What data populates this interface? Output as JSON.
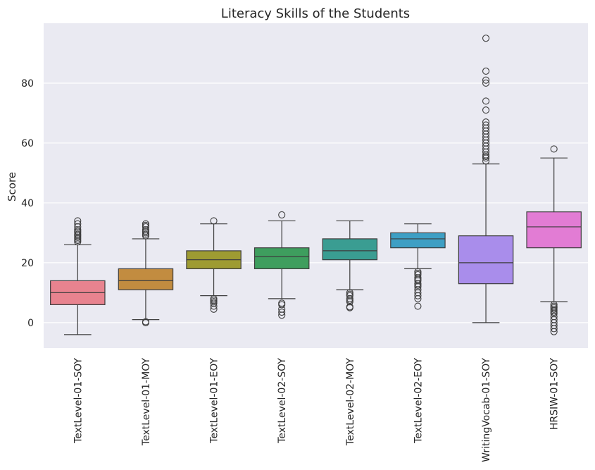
{
  "chart_data": {
    "type": "box",
    "title": "Literacy Skills of the Students",
    "xlabel": "",
    "ylabel": "Score",
    "ylim": [
      -8.5,
      100
    ],
    "yticks": [
      0,
      20,
      40,
      60,
      80
    ],
    "grid": true,
    "background": "#EAEAF2",
    "categories": [
      "TextLevel-01-SOY",
      "TextLevel-01-MOY",
      "TextLevel-01-EOY",
      "TextLevel-02-SOY",
      "TextLevel-02-MOY",
      "TextLevel-02-EOY",
      "WritingVocab-01-SOY",
      "HRSIW-01-SOY"
    ],
    "colors": [
      "#E8838F",
      "#C28C40",
      "#9E9B32",
      "#3E9E5E",
      "#3A9D92",
      "#3E9FC4",
      "#A98DEB",
      "#E27CD4"
    ],
    "boxes": [
      {
        "whisker_low": -4,
        "q1": 6,
        "median": 10,
        "q3": 14,
        "whisker_high": 26,
        "outliers": [
          27,
          27.5,
          28,
          28.5,
          29,
          29.5,
          30,
          30.5,
          31,
          32,
          33,
          34
        ]
      },
      {
        "whisker_low": 1,
        "q1": 11,
        "median": 14,
        "q3": 18,
        "whisker_high": 28,
        "outliers": [
          0,
          0.3,
          29,
          29.5,
          30,
          30.5,
          31,
          32,
          32.5,
          33
        ]
      },
      {
        "whisker_low": 9,
        "q1": 18,
        "median": 21,
        "q3": 24,
        "whisker_high": 33,
        "outliers": [
          4.5,
          5.5,
          6.5,
          7,
          7.5,
          8,
          34
        ]
      },
      {
        "whisker_low": 8,
        "q1": 18,
        "median": 22,
        "q3": 25,
        "whisker_high": 34,
        "outliers": [
          2.5,
          3.5,
          4.5,
          6,
          6.5,
          36
        ]
      },
      {
        "whisker_low": 11,
        "q1": 21,
        "median": 24,
        "q3": 28,
        "whisker_high": 34,
        "outliers": [
          5,
          5.3,
          7,
          7.5,
          8,
          9,
          9.5,
          10
        ]
      },
      {
        "whisker_low": 18,
        "q1": 25,
        "median": 28,
        "q3": 30,
        "whisker_high": 33,
        "outliers": [
          5.5,
          8,
          9,
          10,
          11,
          12,
          12.5,
          13,
          14,
          14.5,
          15,
          16,
          16.5,
          17
        ]
      },
      {
        "whisker_low": 0,
        "q1": 13,
        "median": 20,
        "q3": 29,
        "whisker_high": 53,
        "outliers": [
          54,
          55,
          55.5,
          56,
          57,
          58,
          59,
          60,
          61,
          62,
          63,
          64,
          65,
          66,
          67,
          71,
          74,
          80,
          81,
          84,
          95
        ]
      },
      {
        "whisker_low": 7,
        "q1": 25,
        "median": 32,
        "q3": 37,
        "whisker_high": 55,
        "outliers": [
          -3,
          -2,
          -1,
          0,
          1,
          2,
          3,
          3.5,
          4,
          4.5,
          5,
          5.5,
          6,
          58
        ]
      }
    ]
  }
}
